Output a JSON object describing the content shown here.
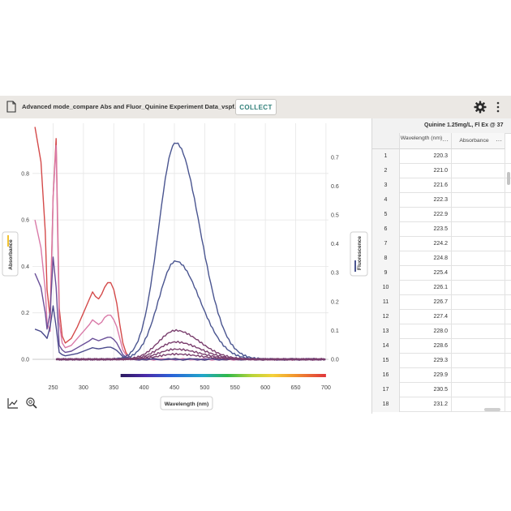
{
  "toolbar": {
    "title": "Advanced mode_compare Abs and Fluor_Quinine Experiment Data_vspf...",
    "collect_label": "COLLECT"
  },
  "graph": {
    "left_axis_label": "Absorbance",
    "right_axis_label": "Fluorescence",
    "x_axis_label": "Wavelength (nm)",
    "left_ticks": [
      "0.0",
      "0.2",
      "0.4",
      "0.6",
      "0.8"
    ],
    "right_ticks": [
      "0.0",
      "0.1",
      "0.2",
      "0.3",
      "0.4",
      "0.5",
      "0.6",
      "0.7"
    ],
    "x_ticks": [
      "250",
      "300",
      "350",
      "400",
      "450",
      "500",
      "550",
      "600",
      "650",
      "700"
    ],
    "icons": [
      "graph-tools-icon",
      "zoom-icon"
    ]
  },
  "chart_data": {
    "type": "line",
    "xlabel": "Wavelength (nm)",
    "ylabel": "Absorbance",
    "y2label": "Fluorescence",
    "xlim": [
      220,
      700
    ],
    "ylim": [
      -0.01,
      0.9
    ],
    "y2lim": [
      -0.01,
      0.73
    ],
    "grid": true,
    "absorbance_series": [
      {
        "color": "#d44a4a",
        "x": [
          220,
          230,
          237,
          240,
          245,
          250,
          255,
          260,
          265,
          270,
          280,
          290,
          300,
          310,
          315,
          320,
          325,
          330,
          335,
          340,
          345,
          350,
          355,
          360,
          365,
          370,
          375,
          380
        ],
        "y": [
          1.0,
          0.85,
          0.55,
          0.3,
          0.18,
          0.7,
          0.95,
          0.22,
          0.1,
          0.07,
          0.09,
          0.14,
          0.2,
          0.26,
          0.29,
          0.27,
          0.26,
          0.28,
          0.31,
          0.33,
          0.33,
          0.3,
          0.24,
          0.15,
          0.07,
          0.03,
          0.01,
          0.0
        ]
      },
      {
        "color": "#d97aa8",
        "x": [
          220,
          230,
          237,
          240,
          245,
          250,
          255,
          260,
          265,
          270,
          280,
          290,
          300,
          310,
          315,
          320,
          325,
          330,
          335,
          340,
          345,
          350,
          355,
          360,
          365,
          370,
          375,
          380
        ],
        "y": [
          0.6,
          0.48,
          0.3,
          0.16,
          0.12,
          0.7,
          0.92,
          0.16,
          0.07,
          0.05,
          0.06,
          0.09,
          0.12,
          0.15,
          0.17,
          0.16,
          0.15,
          0.16,
          0.18,
          0.19,
          0.19,
          0.17,
          0.14,
          0.09,
          0.04,
          0.02,
          0.01,
          0.0
        ]
      },
      {
        "color": "#6a4f98",
        "x": [
          220,
          230,
          237,
          240,
          245,
          250,
          255,
          260,
          265,
          270,
          280,
          290,
          300,
          310,
          315,
          320,
          325,
          330,
          335,
          340,
          345,
          350,
          355,
          360,
          365,
          370,
          375,
          380
        ],
        "y": [
          0.37,
          0.31,
          0.2,
          0.13,
          0.2,
          0.44,
          0.31,
          0.06,
          0.04,
          0.03,
          0.035,
          0.05,
          0.065,
          0.08,
          0.09,
          0.085,
          0.08,
          0.085,
          0.09,
          0.095,
          0.095,
          0.085,
          0.07,
          0.045,
          0.02,
          0.01,
          0.005,
          0.0
        ]
      },
      {
        "color": "#4a4a8c",
        "x": [
          220,
          230,
          237,
          240,
          245,
          250,
          255,
          260,
          265,
          270,
          280,
          290,
          300,
          310,
          315,
          320,
          325,
          330,
          335,
          340,
          345,
          350,
          355,
          360,
          365,
          370,
          375,
          380
        ],
        "y": [
          0.13,
          0.12,
          0.1,
          0.09,
          0.14,
          0.23,
          0.14,
          0.03,
          0.02,
          0.015,
          0.02,
          0.025,
          0.035,
          0.045,
          0.05,
          0.047,
          0.045,
          0.047,
          0.05,
          0.052,
          0.052,
          0.046,
          0.038,
          0.025,
          0.012,
          0.006,
          0.003,
          0.0
        ]
      }
    ],
    "fluorescence_series": [
      {
        "color": "#4a5590",
        "peak": 0.75
      },
      {
        "color": "#4a5590",
        "peak": 0.34
      },
      {
        "color": "#7a3f6e",
        "peak": 0.1
      },
      {
        "color": "#7a3f6e",
        "peak": 0.06
      },
      {
        "color": "#7a3f6e",
        "peak": 0.035
      },
      {
        "color": "#7a3f6e",
        "peak": 0.018
      }
    ],
    "fluorescence_peak_wavelength": 452,
    "spectrum_bar": {
      "from": 380,
      "to": 700
    }
  },
  "table": {
    "title": "Quinine 1.25mg/L, Fl Ex @ 37",
    "col_wavelength": "Wavelength (nm)",
    "col_absorbance": "Absorbance",
    "col_menu": "···",
    "rows": [
      {
        "index": "1",
        "wavelength": "220.3"
      },
      {
        "index": "2",
        "wavelength": "221.0"
      },
      {
        "index": "3",
        "wavelength": "221.6"
      },
      {
        "index": "4",
        "wavelength": "222.3"
      },
      {
        "index": "5",
        "wavelength": "222.9"
      },
      {
        "index": "6",
        "wavelength": "223.5"
      },
      {
        "index": "7",
        "wavelength": "224.2"
      },
      {
        "index": "8",
        "wavelength": "224.8"
      },
      {
        "index": "9",
        "wavelength": "225.4"
      },
      {
        "index": "10",
        "wavelength": "226.1"
      },
      {
        "index": "11",
        "wavelength": "226.7"
      },
      {
        "index": "12",
        "wavelength": "227.4"
      },
      {
        "index": "13",
        "wavelength": "228.0"
      },
      {
        "index": "14",
        "wavelength": "228.6"
      },
      {
        "index": "15",
        "wavelength": "229.3"
      },
      {
        "index": "16",
        "wavelength": "229.9"
      },
      {
        "index": "17",
        "wavelength": "230.5"
      },
      {
        "index": "18",
        "wavelength": "231.2"
      }
    ]
  }
}
